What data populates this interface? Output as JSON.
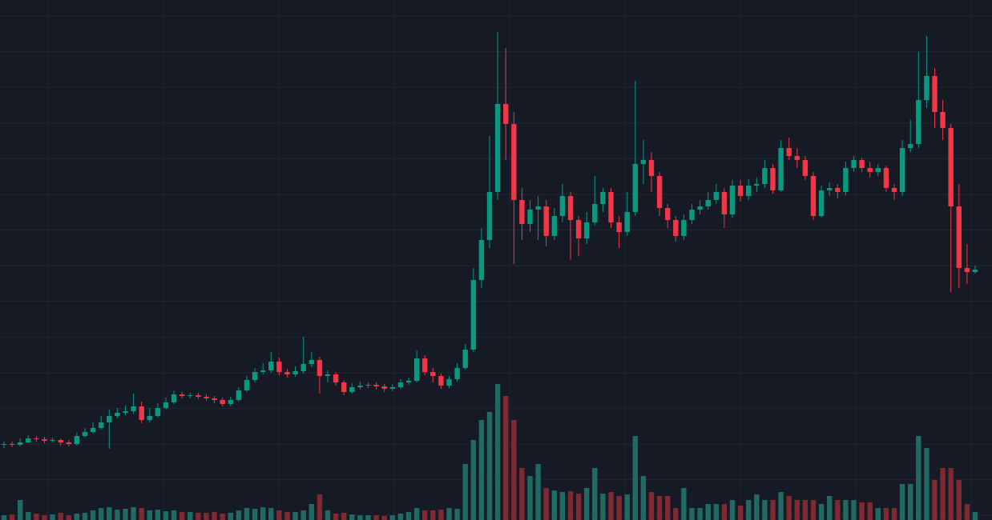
{
  "chart_data": {
    "type": "candlestick",
    "up_color": "#089981",
    "down_color": "#f23645",
    "volume_up_color": "#1f6b63",
    "volume_down_color": "#7f2a33",
    "grid": true,
    "ylim": [
      0,
      65
    ],
    "y2lim": [
      0,
      65
    ],
    "open": [
      9.4,
      9.5,
      9.4,
      9.7,
      10.2,
      10.1,
      9.9,
      10.0,
      9.7,
      9.5,
      10.5,
      11.0,
      11.5,
      12.2,
      13.0,
      13.4,
      13.6,
      14.2,
      12.5,
      13.0,
      14.0,
      14.7,
      15.7,
      15.5,
      15.6,
      15.4,
      15.2,
      15.0,
      14.5,
      15.0,
      16.2,
      17.5,
      18.5,
      18.7,
      19.8,
      18.5,
      18.2,
      18.6,
      19.5,
      20.0,
      18.0,
      18.2,
      17.2,
      16.0,
      16.6,
      16.8,
      16.9,
      16.7,
      16.4,
      16.6,
      17.2,
      17.4,
      20.2,
      18.5,
      18.0,
      16.8,
      17.6,
      19.0,
      21.3,
      30.0,
      35.0,
      41.0,
      52.0,
      49.5,
      40.0,
      37.0,
      38.8,
      39.2,
      35.5,
      38.0,
      40.5,
      37.5,
      35.2,
      37.2,
      39.5,
      41.0,
      37.2,
      36.0,
      38.5,
      44.5,
      45.0,
      43.0,
      39.0,
      37.5,
      35.5,
      37.5,
      38.8,
      39.2,
      40.0,
      41.0,
      38.2,
      41.8,
      40.5,
      41.8,
      42.0,
      44.0,
      41.2,
      46.5,
      45.5,
      45.0,
      43.0,
      38.0,
      41.2,
      41.5,
      41.0,
      44.0,
      45.0,
      44.0,
      43.5,
      44.0,
      41.5,
      41.0,
      46.5,
      47.0,
      52.5,
      55.5,
      51.0,
      49.0,
      39.2,
      31.5,
      31.0
    ],
    "high": [
      9.8,
      9.8,
      10.2,
      10.6,
      10.5,
      10.4,
      10.3,
      10.2,
      10.0,
      10.9,
      11.5,
      12.2,
      13.0,
      13.8,
      14.0,
      14.3,
      15.8,
      14.8,
      14.0,
      14.6,
      15.3,
      16.2,
      16.0,
      15.9,
      15.9,
      15.7,
      15.5,
      15.3,
      15.4,
      16.6,
      18.0,
      19.0,
      19.6,
      21.0,
      20.3,
      18.9,
      19.2,
      22.9,
      21.0,
      20.4,
      18.7,
      18.5,
      17.5,
      17.1,
      17.3,
      17.2,
      17.2,
      17.0,
      17.0,
      17.6,
      17.8,
      21.2,
      20.6,
      19.0,
      18.3,
      18.0,
      19.6,
      22.0,
      31.5,
      36.5,
      48.0,
      61.0,
      59.0,
      51.0,
      41.5,
      40.0,
      40.5,
      40.0,
      39.0,
      42.0,
      41.0,
      38.0,
      38.5,
      43.0,
      41.5,
      41.5,
      38.0,
      41.0,
      54.9,
      47.5,
      46.0,
      43.5,
      39.5,
      38.0,
      38.2,
      39.5,
      40.0,
      41.0,
      42.0,
      41.5,
      42.5,
      42.5,
      42.6,
      42.8,
      45.0,
      44.5,
      47.5,
      47.8,
      46.5,
      45.5,
      43.5,
      41.8,
      42.2,
      42.0,
      44.8,
      45.5,
      45.3,
      44.8,
      44.5,
      44.3,
      42.0,
      47.5,
      50.0,
      58.5,
      60.5,
      56.5,
      52.5,
      49.5,
      42.0,
      34.5,
      31.8
    ],
    "low": [
      9.0,
      9.1,
      9.2,
      9.6,
      9.8,
      9.6,
      9.7,
      9.3,
      9.2,
      9.3,
      10.3,
      10.8,
      11.3,
      8.9,
      12.7,
      13.1,
      13.3,
      12.1,
      12.2,
      12.8,
      13.8,
      14.5,
      15.2,
      15.2,
      15.1,
      14.9,
      14.6,
      14.2,
      14.2,
      14.8,
      16.0,
      17.2,
      18.2,
      18.4,
      18.1,
      17.8,
      17.9,
      18.3,
      19.1,
      15.8,
      17.2,
      16.8,
      15.6,
      15.8,
      16.3,
      16.5,
      16.3,
      16.0,
      16.1,
      16.4,
      16.9,
      17.2,
      18.1,
      17.2,
      16.4,
      16.5,
      17.3,
      18.8,
      21.0,
      29.0,
      34.0,
      40.0,
      45.0,
      32.0,
      35.0,
      36.0,
      35.0,
      34.2,
      35.0,
      37.2,
      32.5,
      33.0,
      34.5,
      36.8,
      38.5,
      36.5,
      34.0,
      35.5,
      38.0,
      42.0,
      41.0,
      38.0,
      36.5,
      34.8,
      35.0,
      37.0,
      38.2,
      38.8,
      39.5,
      36.5,
      37.8,
      39.8,
      40.0,
      41.0,
      41.5,
      40.8,
      41.0,
      45.0,
      44.0,
      42.5,
      37.5,
      37.8,
      40.5,
      40.2,
      40.6,
      43.5,
      43.5,
      42.8,
      43.0,
      41.0,
      40.0,
      40.5,
      46.0,
      46.5,
      51.5,
      49.0,
      47.5,
      28.5,
      29.0,
      29.5,
      30.8
    ],
    "close": [
      9.5,
      9.4,
      9.7,
      10.2,
      10.1,
      9.9,
      10.0,
      9.7,
      9.5,
      10.5,
      11.0,
      11.5,
      12.2,
      13.0,
      13.4,
      13.6,
      14.2,
      12.5,
      13.0,
      14.0,
      14.7,
      15.7,
      15.5,
      15.6,
      15.4,
      15.2,
      15.0,
      14.5,
      15.0,
      16.2,
      17.5,
      18.5,
      18.7,
      19.8,
      18.5,
      18.2,
      18.6,
      19.5,
      20.0,
      18.0,
      18.2,
      17.2,
      16.0,
      16.6,
      16.8,
      16.9,
      16.7,
      16.4,
      16.6,
      17.2,
      17.4,
      20.2,
      18.5,
      18.0,
      16.8,
      17.6,
      19.0,
      21.3,
      30.0,
      35.0,
      41.0,
      52.0,
      49.5,
      40.0,
      37.0,
      38.8,
      39.2,
      35.5,
      38.0,
      40.5,
      37.5,
      35.2,
      37.2,
      39.5,
      41.0,
      37.2,
      36.0,
      38.5,
      44.5,
      45.0,
      43.0,
      39.0,
      37.5,
      35.5,
      37.5,
      38.8,
      39.2,
      40.0,
      41.0,
      38.2,
      41.8,
      40.5,
      41.8,
      42.0,
      44.0,
      41.2,
      46.5,
      45.5,
      45.0,
      43.0,
      38.0,
      41.2,
      41.5,
      41.0,
      44.0,
      45.0,
      44.0,
      43.5,
      44.0,
      41.5,
      41.0,
      46.5,
      47.0,
      52.5,
      55.5,
      51.0,
      49.0,
      39.2,
      31.5,
      31.0,
      31.3
    ],
    "volume": [
      0.6,
      0.7,
      2.5,
      1.0,
      0.8,
      0.6,
      0.7,
      0.9,
      0.6,
      0.8,
      0.9,
      1.2,
      1.5,
      1.6,
      1.3,
      1.4,
      1.6,
      1.5,
      1.2,
      1.3,
      1.1,
      1.2,
      1.0,
      1.0,
      0.9,
      0.9,
      1.0,
      0.8,
      0.9,
      1.2,
      1.5,
      1.4,
      1.6,
      1.5,
      1.2,
      1.0,
      1.0,
      1.2,
      2.0,
      3.2,
      1.2,
      0.8,
      0.9,
      0.7,
      0.6,
      0.6,
      0.6,
      0.5,
      0.6,
      0.8,
      1.0,
      1.5,
      1.2,
      1.2,
      1.3,
      1.5,
      1.4,
      7.0,
      10.0,
      12.5,
      13.5,
      17.0,
      15.5,
      12.5,
      6.5,
      5.5,
      7.0,
      4.0,
      3.7,
      3.5,
      3.6,
      3.3,
      4.0,
      6.5,
      3.3,
      3.5,
      3.0,
      3.2,
      10.5,
      5.5,
      3.5,
      3.0,
      3.0,
      1.5,
      4.0,
      1.5,
      1.5,
      2.0,
      2.0,
      2.0,
      2.5,
      1.8,
      2.5,
      3.2,
      2.5,
      2.5,
      3.5,
      3.0,
      2.5,
      2.5,
      2.5,
      2.0,
      3.0,
      2.5,
      2.5,
      2.5,
      2.2,
      2.2,
      1.5,
      1.5,
      1.5,
      4.5,
      4.5,
      10.5,
      9.0,
      5.0,
      6.5,
      6.5,
      5.0,
      2.0,
      1.0
    ]
  }
}
